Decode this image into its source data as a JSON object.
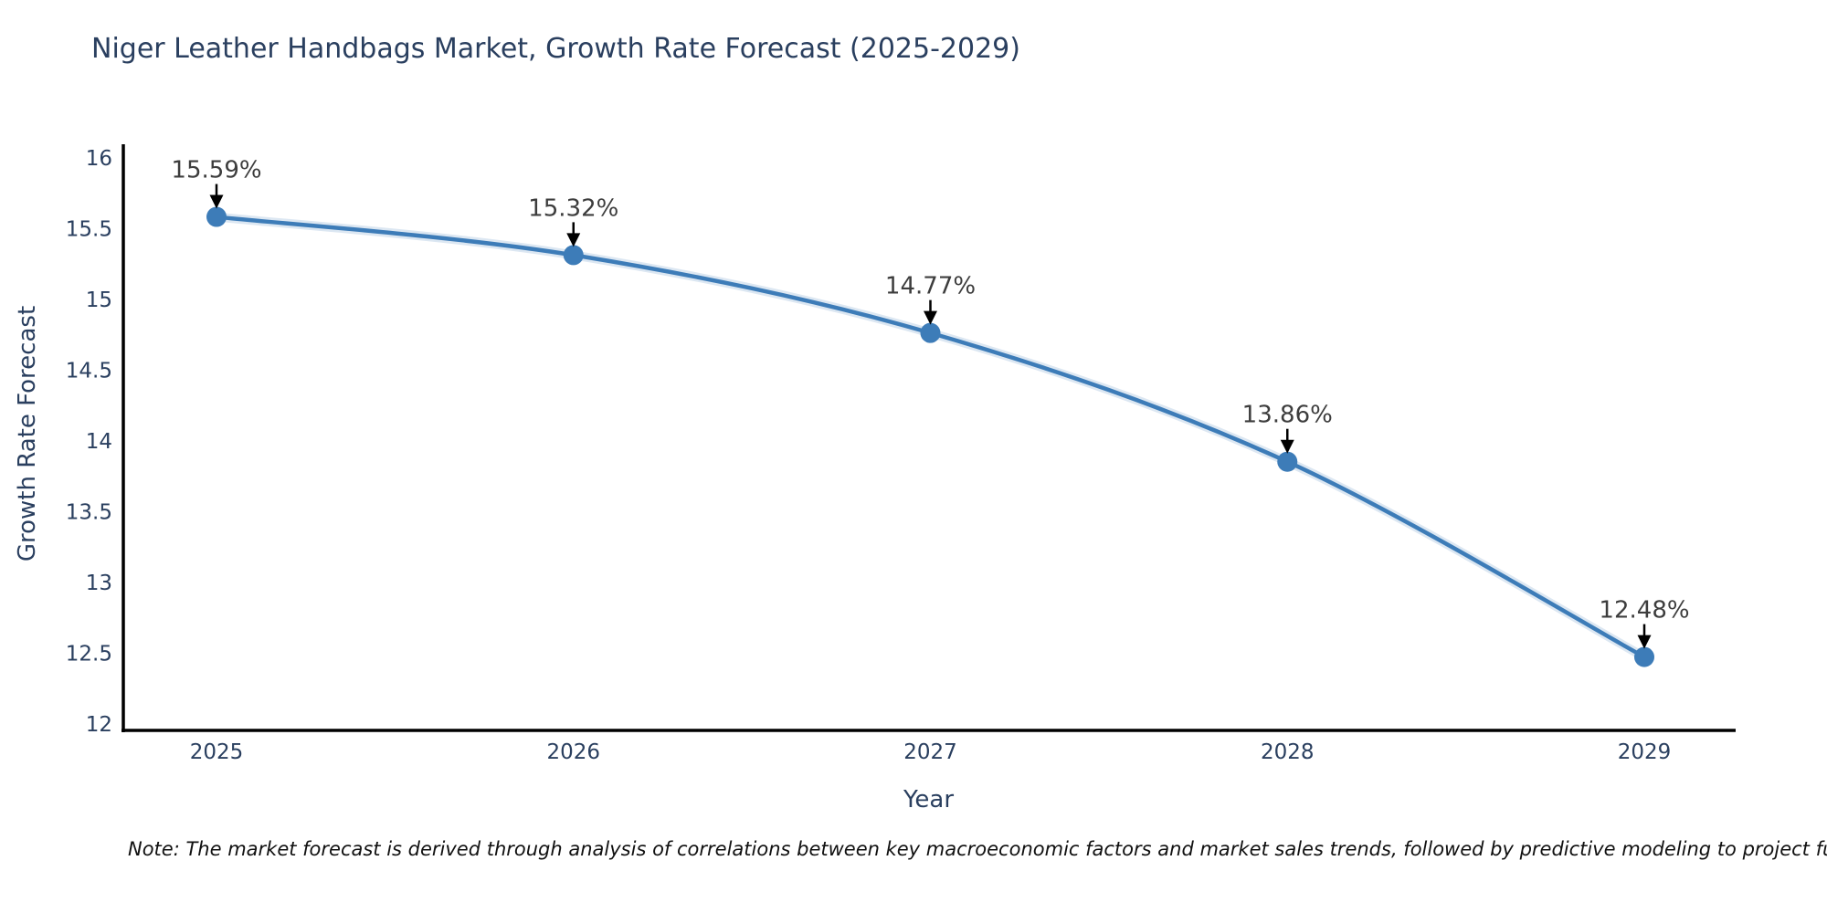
{
  "page": {
    "title": "Niger Leather Handbags Market, Growth Rate Forecast (2025-2029)",
    "note": "Note: The market forecast is derived through analysis of correlations between key macroeconomic factors and market sales trends, followed by predictive modeling to project future sal"
  },
  "chart_data": {
    "type": "line",
    "title": "Niger Leather Handbags Market, Growth Rate Forecast (2025-2029)",
    "categories": [
      "2025",
      "2026",
      "2027",
      "2028",
      "2029"
    ],
    "series": [
      {
        "name": "Growth Rate Forecast",
        "values": [
          15.59,
          15.32,
          14.77,
          13.86,
          12.48
        ]
      }
    ],
    "point_labels": [
      "15.59%",
      "15.32%",
      "14.77%",
      "13.86%",
      "12.48%"
    ],
    "xlabel": "Year",
    "ylabel": "Growth Rate Forecast",
    "ylim": [
      12,
      16
    ],
    "yticks": [
      12,
      12.5,
      13,
      13.5,
      14,
      14.5,
      15,
      15.5,
      16
    ],
    "ytick_labels": [
      "12",
      "12.5",
      "13",
      "13.5",
      "14",
      "14.5",
      "15",
      "15.5",
      "16"
    ],
    "grid": false,
    "legend_position": "none",
    "line_shape": "spline",
    "marker": "circle",
    "annotation_style": "arrow-down-to-point",
    "colors": {
      "line": "#3d7cb8",
      "line_halo": "rgba(61,124,184,0.18)",
      "marker": "#3d7cb8",
      "axis_line": "#000000",
      "tick_text": "#2a3f5f",
      "axis_title_text": "#2a3f5f",
      "chart_title_text": "#2a3f5f",
      "annotation_text": "#3d3d3d",
      "annotation_arrow": "#000000",
      "note_text": "#111111",
      "background": "#ffffff"
    }
  }
}
